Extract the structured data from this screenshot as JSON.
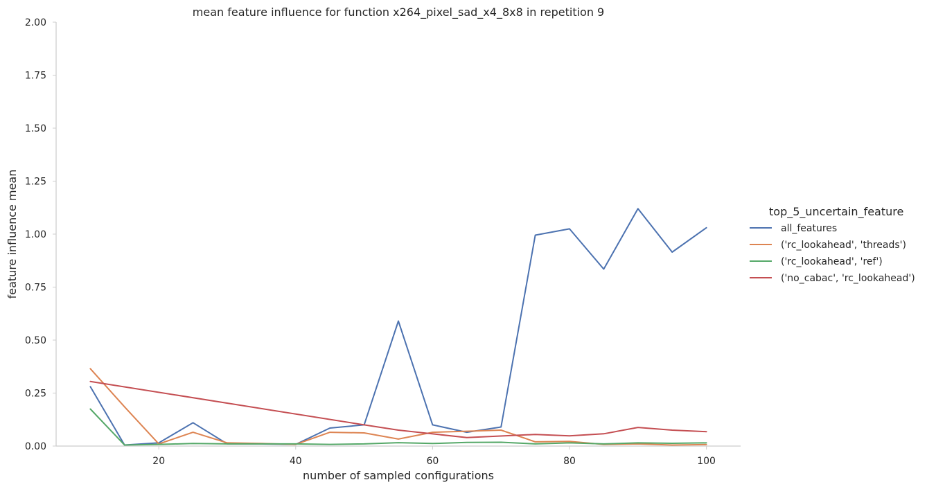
{
  "chart_data": {
    "type": "line",
    "title": "mean feature influence for function x264_pixel_sad_x4_8x8 in repetition 9",
    "xlabel": "number of sampled configurations",
    "ylabel": "feature influence mean",
    "xlim": [
      5,
      105
    ],
    "ylim": [
      0,
      2.0
    ],
    "x_ticks": [
      20,
      40,
      60,
      80,
      100
    ],
    "y_ticks": [
      "0.00",
      "0.25",
      "0.50",
      "0.75",
      "1.00",
      "1.25",
      "1.50",
      "1.75",
      "2.00"
    ],
    "grid": false,
    "legend": {
      "title": "top_5_uncertain_feature",
      "placement": "right"
    },
    "x": [
      10,
      15,
      20,
      25,
      30,
      35,
      40,
      45,
      50,
      55,
      60,
      65,
      70,
      75,
      80,
      85,
      90,
      95,
      100
    ],
    "series": [
      {
        "name": "all_features",
        "color": "#4c72b0",
        "x": [
          10,
          15,
          20,
          25,
          30,
          35,
          40,
          45,
          50,
          55,
          60,
          65,
          70,
          75,
          80,
          85,
          90,
          95,
          100
        ],
        "values": [
          0.28,
          0.005,
          0.015,
          0.11,
          0.01,
          0.01,
          0.008,
          0.085,
          0.1,
          0.59,
          0.1,
          0.065,
          0.09,
          0.995,
          1.025,
          0.835,
          1.12,
          0.915,
          1.03
        ]
      },
      {
        "name": "('rc_lookahead', 'threads')",
        "color": "#dd8452",
        "x": [
          10,
          15,
          20,
          25,
          30,
          35,
          40,
          45,
          50,
          55,
          60,
          65,
          70,
          75,
          80,
          85,
          90,
          95,
          100
        ],
        "values": [
          0.365,
          0.185,
          0.01,
          0.065,
          0.015,
          0.012,
          0.008,
          0.065,
          0.062,
          0.033,
          0.065,
          0.07,
          0.075,
          0.02,
          0.022,
          0.008,
          0.01,
          0.005,
          0.007
        ]
      },
      {
        "name": "('rc_lookahead', 'ref')",
        "color": "#55a868",
        "x": [
          10,
          15,
          20,
          25,
          30,
          35,
          40,
          45,
          50,
          55,
          60,
          65,
          70,
          75,
          80,
          85,
          90,
          95,
          100
        ],
        "values": [
          0.175,
          0.005,
          0.008,
          0.012,
          0.01,
          0.01,
          0.01,
          0.008,
          0.01,
          0.016,
          0.012,
          0.017,
          0.018,
          0.01,
          0.015,
          0.01,
          0.015,
          0.013,
          0.015
        ]
      },
      {
        "name": "('no_cabac', 'rc_lookahead')",
        "color": "#c44e52",
        "x": [
          10,
          50,
          55,
          65,
          75,
          80,
          85,
          90,
          95,
          100
        ],
        "values": [
          0.305,
          0.1,
          0.075,
          0.04,
          0.055,
          0.048,
          0.058,
          0.088,
          0.075,
          0.068
        ]
      }
    ]
  }
}
